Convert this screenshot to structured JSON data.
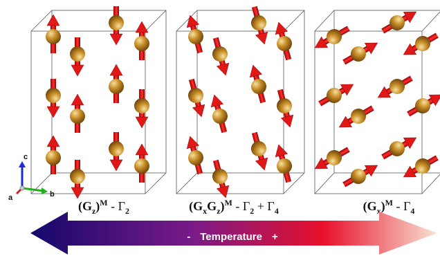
{
  "panels": [
    {
      "label": [
        "(G",
        "z",
        ")",
        "M",
        " - Γ",
        "2"
      ]
    },
    {
      "label": [
        "(G",
        "x",
        "G",
        "z",
        ")",
        "M",
        " - Γ",
        "2",
        " + Γ",
        "4"
      ]
    },
    {
      "label": [
        "(G",
        "x",
        ")",
        "M",
        " - Γ",
        "4"
      ]
    }
  ],
  "axes": {
    "c": "c",
    "b": "b",
    "a": "a"
  },
  "temperature_bar": {
    "minus": "-",
    "label": "Temperature",
    "plus": "+"
  }
}
